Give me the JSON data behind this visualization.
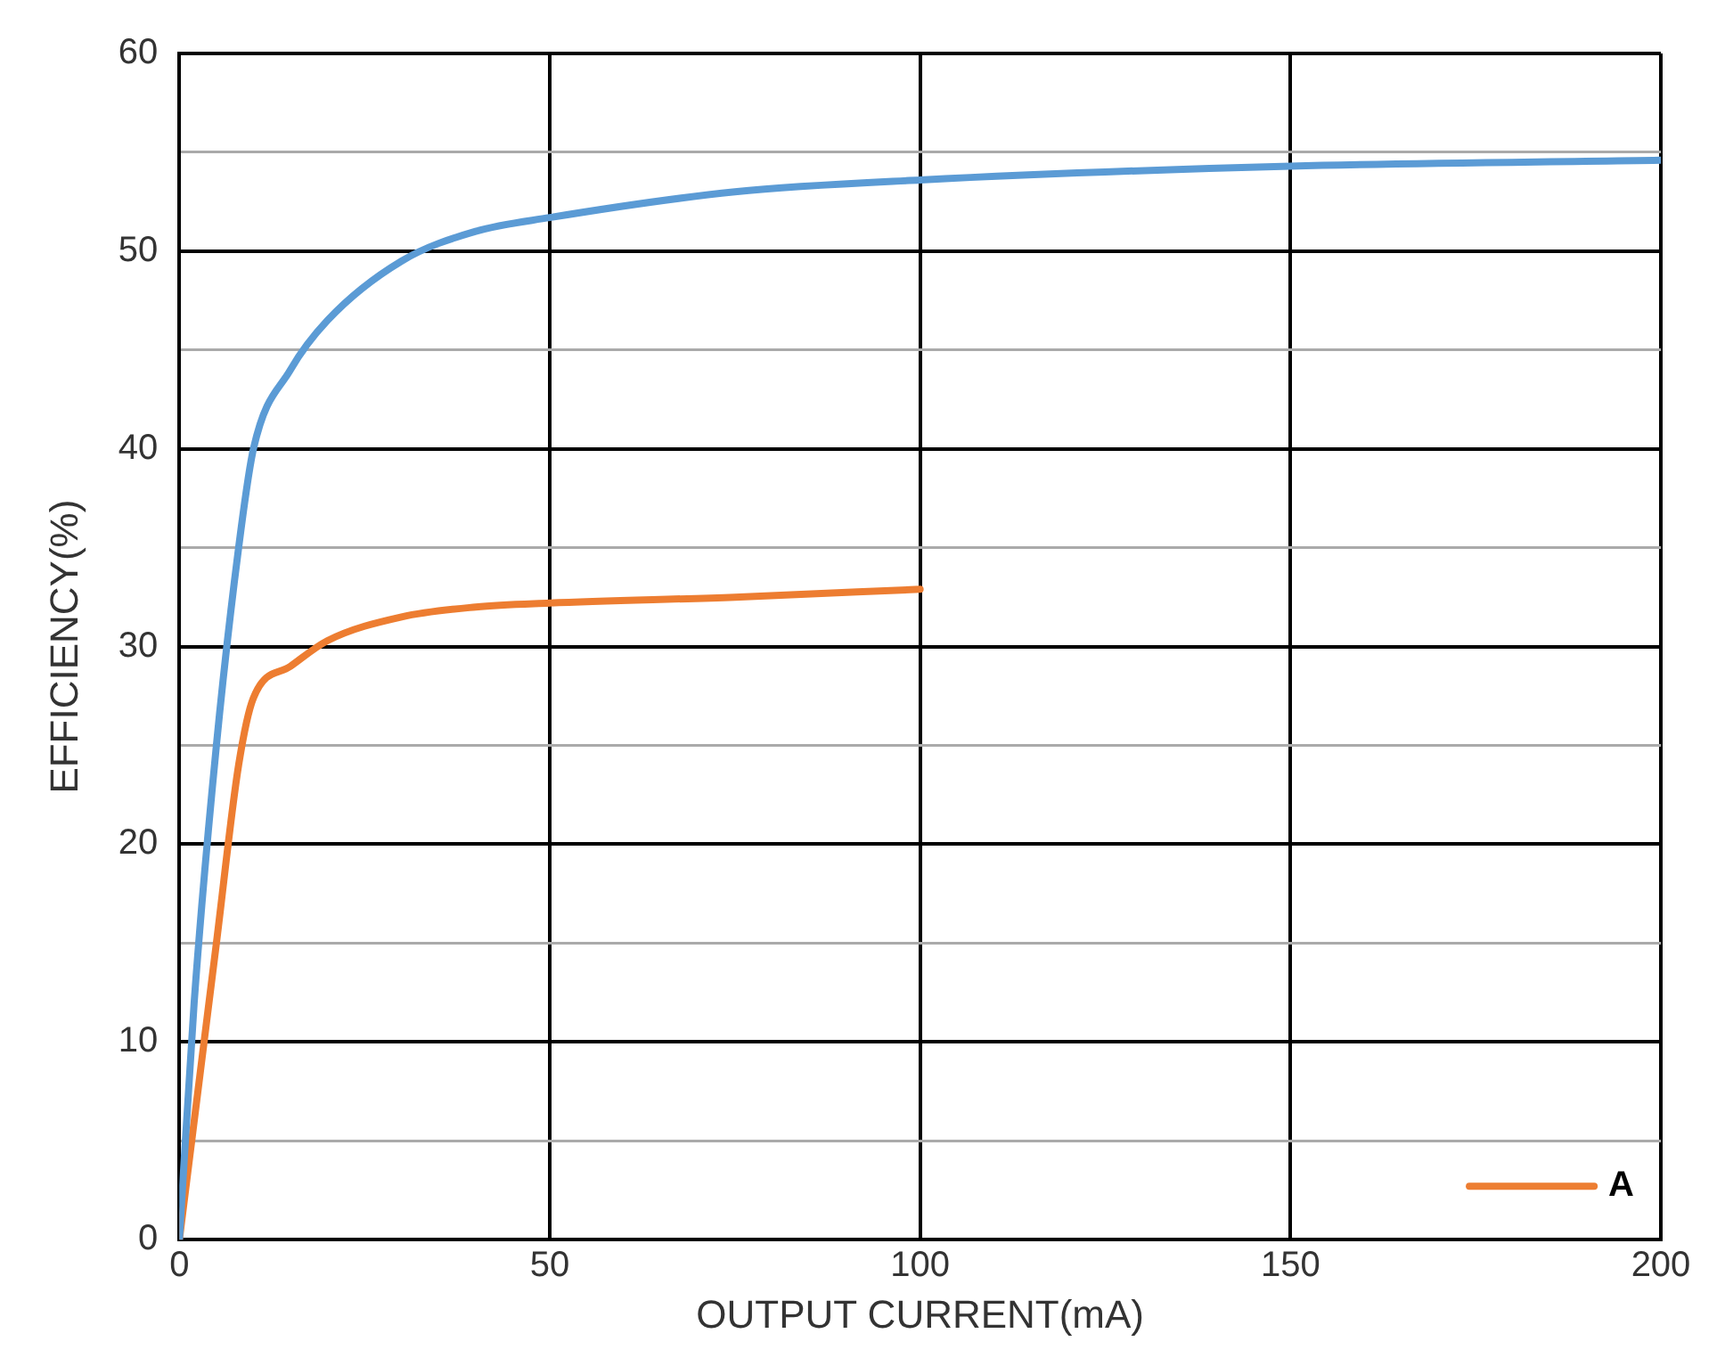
{
  "chart_data": {
    "type": "line",
    "xlabel": "OUTPUT CURRENT(mA)",
    "ylabel": "EFFICIENCY(%)",
    "xlim": [
      0,
      200
    ],
    "xticks": [
      0,
      50,
      100,
      150,
      200
    ],
    "ylim": [
      0,
      60
    ],
    "yticks": [
      0,
      {
        "value": 5,
        "label": null
      },
      10,
      {
        "value": 15,
        "label": null
      },
      20,
      {
        "value": 25,
        "label": null
      },
      30,
      {
        "value": 35,
        "label": null
      },
      40,
      {
        "value": 45,
        "label": null
      },
      50,
      {
        "value": 55,
        "label": null
      },
      60
    ],
    "grid": true,
    "legend": "bottom right",
    "marker": "none",
    "line_style": "solid",
    "series": [
      {
        "color": "#5b9bd5",
        "x": [
          0,
          2,
          5,
          8,
          10,
          15,
          20,
          30,
          40,
          50,
          75,
          100,
          150,
          200
        ],
        "values": [
          0,
          12,
          25,
          35,
          40,
          44,
          46.5,
          49.5,
          51,
          51.7,
          53,
          53.6,
          54.3,
          54.6
        ]
      },
      {
        "name": "A",
        "color": "#ed7d31",
        "x": [
          0,
          5,
          8,
          10,
          15,
          20,
          30,
          40,
          50,
          75,
          100
        ],
        "values": [
          0,
          15,
          24,
          27.4,
          29,
          30.3,
          31.5,
          32,
          32.2,
          32.5,
          32.9
        ]
      }
    ]
  }
}
